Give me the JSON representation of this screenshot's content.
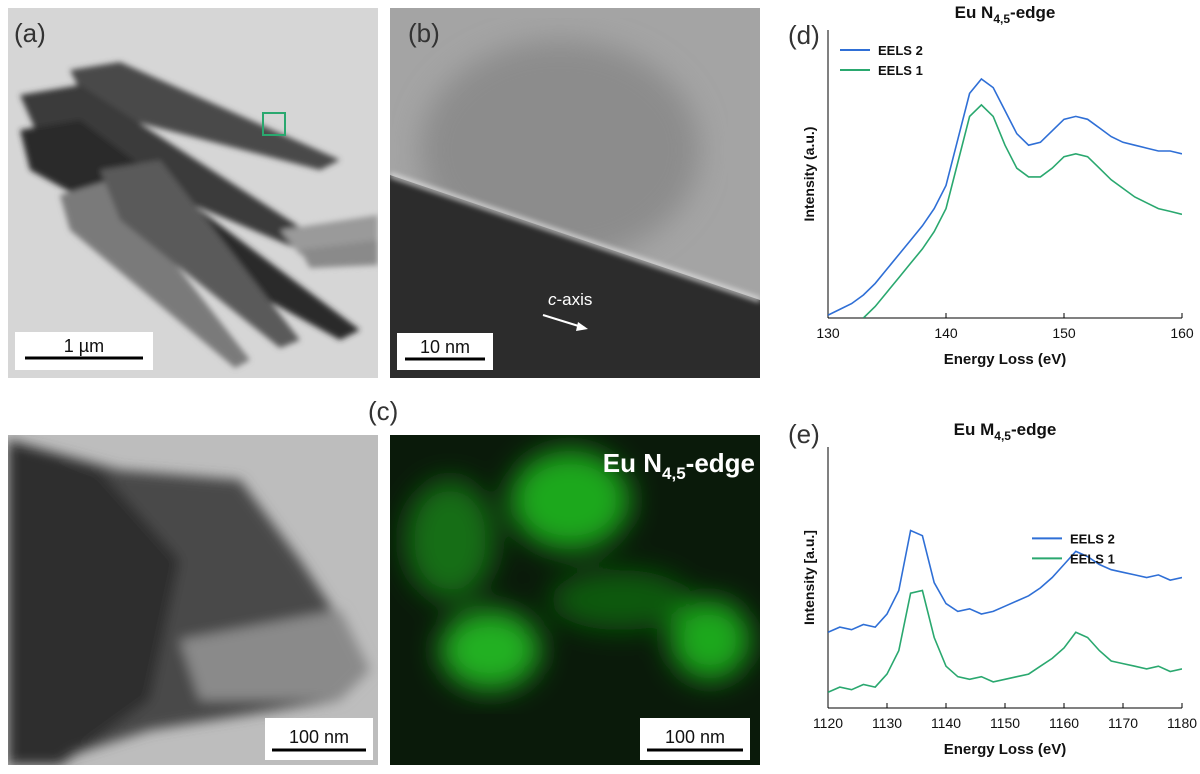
{
  "panel_labels": [
    "(a)",
    "(b)",
    "(c)",
    "(d)",
    "(e)"
  ],
  "scale_bars": [
    "1 µm",
    "10 nm",
    "100 nm",
    "100 nm"
  ],
  "annotation": [
    "c",
    "-axis"
  ],
  "map_title": [
    "Eu N",
    "4,5",
    "-edge"
  ],
  "chart_data": [
    {
      "type": "line",
      "title": [
        "Eu N",
        "4,5",
        "-edge"
      ],
      "x_label": "Energy Loss (eV)",
      "y_label": "Intensity (a.u.)",
      "x": [
        130,
        131,
        132,
        133,
        134,
        135,
        136,
        137,
        138,
        139,
        140,
        141,
        142,
        143,
        144,
        145,
        146,
        147,
        148,
        149,
        150,
        151,
        152,
        153,
        154,
        155,
        156,
        157,
        158,
        159,
        160
      ],
      "xlim": [
        130,
        160
      ],
      "xticks": [
        130,
        140,
        150,
        160
      ],
      "ylim": [
        0,
        1
      ],
      "legend": "upper-left",
      "series": [
        {
          "name": "EELS 2",
          "color": "#2f6fd6",
          "values": [
            0.01,
            0.03,
            0.05,
            0.08,
            0.12,
            0.17,
            0.22,
            0.27,
            0.32,
            0.38,
            0.46,
            0.62,
            0.78,
            0.83,
            0.8,
            0.72,
            0.64,
            0.6,
            0.61,
            0.65,
            0.69,
            0.7,
            0.69,
            0.66,
            0.63,
            0.61,
            0.6,
            0.59,
            0.58,
            0.58,
            0.57
          ]
        },
        {
          "name": "EELS 1",
          "color": "#2aa86f",
          "values": [
            null,
            null,
            null,
            0.0,
            0.04,
            0.09,
            0.14,
            0.19,
            0.24,
            0.3,
            0.38,
            0.54,
            0.7,
            0.74,
            0.7,
            0.6,
            0.52,
            0.49,
            0.49,
            0.52,
            0.56,
            0.57,
            0.56,
            0.52,
            0.48,
            0.45,
            0.42,
            0.4,
            0.38,
            0.37,
            0.36
          ]
        }
      ]
    },
    {
      "type": "line",
      "title": [
        "Eu M",
        "4,5",
        "-edge"
      ],
      "x_label": "Energy Loss (eV)",
      "y_label": "Intensity [a.u.]",
      "x": [
        1120,
        1122,
        1124,
        1126,
        1128,
        1130,
        1132,
        1134,
        1136,
        1138,
        1140,
        1142,
        1144,
        1146,
        1148,
        1150,
        1152,
        1154,
        1156,
        1158,
        1160,
        1162,
        1164,
        1166,
        1168,
        1170,
        1172,
        1174,
        1176,
        1178,
        1180
      ],
      "xlim": [
        1120,
        1180
      ],
      "xticks": [
        1120,
        1130,
        1140,
        1150,
        1160,
        1170,
        1180
      ],
      "ylim": [
        0,
        1
      ],
      "legend": "center-right",
      "series": [
        {
          "name": "EELS 2",
          "color": "#2f6fd6",
          "values": [
            0.29,
            0.31,
            0.3,
            0.32,
            0.31,
            0.36,
            0.45,
            0.68,
            0.66,
            0.48,
            0.4,
            0.37,
            0.38,
            0.36,
            0.37,
            0.39,
            0.41,
            0.43,
            0.46,
            0.5,
            0.55,
            0.6,
            0.58,
            0.55,
            0.53,
            0.52,
            0.51,
            0.5,
            0.51,
            0.49,
            0.5
          ]
        },
        {
          "name": "EELS 1",
          "color": "#2aa86f",
          "values": [
            0.06,
            0.08,
            0.07,
            0.09,
            0.08,
            0.13,
            0.22,
            0.44,
            0.45,
            0.27,
            0.16,
            0.12,
            0.11,
            0.12,
            0.1,
            0.11,
            0.12,
            0.13,
            0.16,
            0.19,
            0.23,
            0.29,
            0.27,
            0.22,
            0.18,
            0.17,
            0.16,
            0.15,
            0.16,
            0.14,
            0.15
          ]
        }
      ]
    }
  ]
}
